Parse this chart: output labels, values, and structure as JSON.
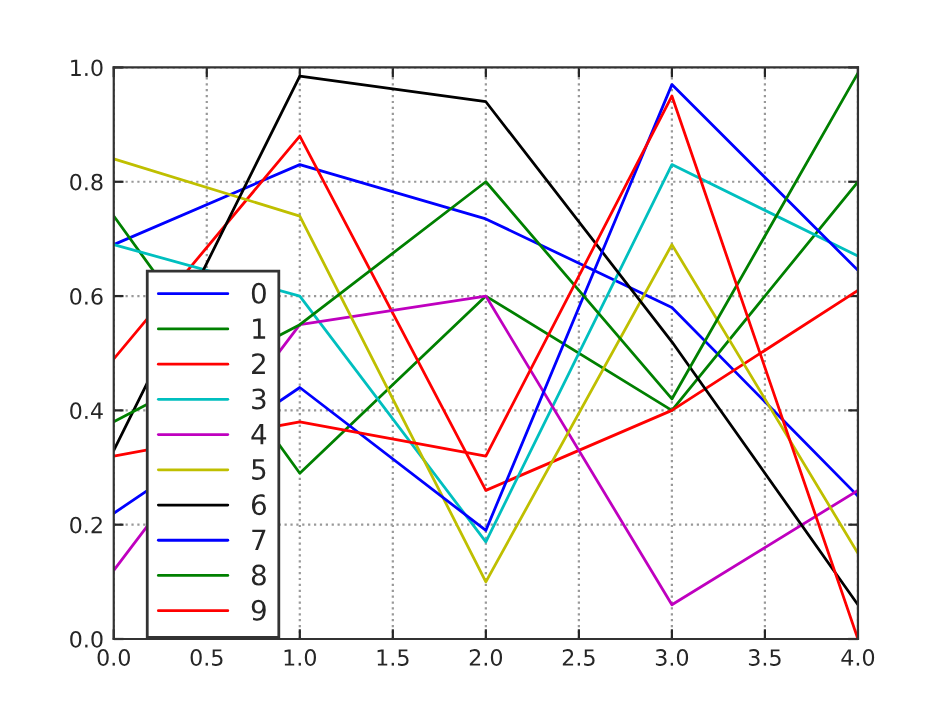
{
  "chart_data": {
    "type": "line",
    "x": [
      0,
      1,
      2,
      3,
      4
    ],
    "series": [
      {
        "name": "0",
        "color": "#0000ff",
        "values": [
          0.69,
          0.83,
          0.735,
          0.58,
          0.25
        ]
      },
      {
        "name": "1",
        "color": "#008000",
        "values": [
          0.74,
          0.29,
          0.6,
          0.4,
          0.8
        ]
      },
      {
        "name": "2",
        "color": "#ff0000",
        "values": [
          0.49,
          0.88,
          0.26,
          0.4,
          0.61
        ]
      },
      {
        "name": "3",
        "color": "#00bfbf",
        "values": [
          0.69,
          0.6,
          0.17,
          0.83,
          0.67
        ]
      },
      {
        "name": "4",
        "color": "#bf00bf",
        "values": [
          0.12,
          0.55,
          0.6,
          0.06,
          0.26
        ]
      },
      {
        "name": "5",
        "color": "#bfbf00",
        "values": [
          0.84,
          0.74,
          0.1,
          0.69,
          0.15
        ]
      },
      {
        "name": "6",
        "color": "#000000",
        "values": [
          0.33,
          0.985,
          0.94,
          0.52,
          0.06
        ]
      },
      {
        "name": "7",
        "color": "#0000ff",
        "values": [
          0.22,
          0.44,
          0.19,
          0.97,
          0.645
        ]
      },
      {
        "name": "8",
        "color": "#008000",
        "values": [
          0.38,
          0.55,
          0.8,
          0.42,
          0.99
        ]
      },
      {
        "name": "9",
        "color": "#ff0000",
        "values": [
          0.32,
          0.38,
          0.32,
          0.95,
          0.0
        ]
      }
    ],
    "xlim": [
      0,
      4
    ],
    "xticks": [
      {
        "value": 0,
        "label": "0.0"
      },
      {
        "value": 0.5,
        "label": "0.5"
      },
      {
        "value": 1,
        "label": "1.0"
      },
      {
        "value": 1.5,
        "label": "1.5"
      },
      {
        "value": 2,
        "label": "2.0"
      },
      {
        "value": 2.5,
        "label": "2.5"
      },
      {
        "value": 3,
        "label": "3.0"
      },
      {
        "value": 3.5,
        "label": "3.5"
      },
      {
        "value": 4,
        "label": "4.0"
      }
    ],
    "ylim": [
      0,
      1
    ],
    "yticks": [
      {
        "value": 0,
        "label": "0.0"
      },
      {
        "value": 0.2,
        "label": "0.2"
      },
      {
        "value": 0.4,
        "label": "0.4"
      },
      {
        "value": 0.6,
        "label": "0.6"
      },
      {
        "value": 0.8,
        "label": "0.8"
      },
      {
        "value": 1,
        "label": "1.0"
      }
    ],
    "grid": true,
    "legend": "lower left",
    "marker": "none",
    "line_style": "solid"
  }
}
